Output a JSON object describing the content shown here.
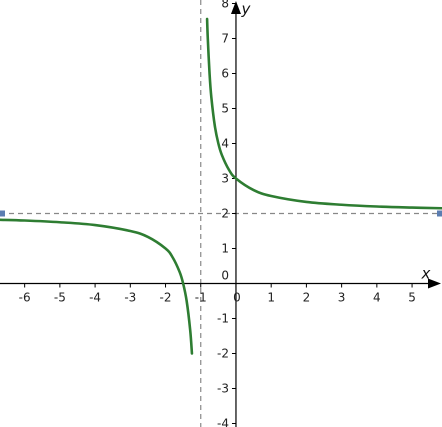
{
  "chart_data": {
    "type": "line",
    "title": "",
    "xlabel": "x",
    "ylabel": "y",
    "xlim": [
      -6.7,
      5.85
    ],
    "ylim": [
      -4.1,
      8.1
    ],
    "x_ticks": [
      "-6",
      "-5",
      "-4",
      "-3",
      "-2",
      "-1",
      "0",
      "1",
      "2",
      "3",
      "4",
      "5"
    ],
    "y_ticks": [
      "-4",
      "-3",
      "-2",
      "-1",
      "0",
      "1",
      "2",
      "3",
      "4",
      "5",
      "6",
      "7",
      "8"
    ],
    "grid": false,
    "series": [
      {
        "name": "",
        "color": "#2e7d32",
        "branches": [
          {
            "x": [
              -6.7,
              -6.0,
              -5.0,
              -4.0,
              -3.0,
              -2.5,
              -2.0,
              -1.8,
              -1.6,
              -1.5,
              -1.4,
              -1.3,
              -1.25
            ],
            "y": [
              1.82,
              1.8,
              1.75,
              1.67,
              1.5,
              1.33,
              1.0,
              0.75,
              0.33,
              0.0,
              -0.5,
              -1.33,
              -2.0
            ]
          },
          {
            "x": [
              -0.82,
              -0.8,
              -0.75,
              -0.7,
              -0.6,
              -0.5,
              -0.4,
              -0.2,
              0.0,
              0.5,
              1.0,
              2.0,
              3.0,
              4.0,
              5.0,
              5.85
            ],
            "y": [
              7.56,
              7.0,
              6.0,
              5.33,
              4.5,
              4.0,
              3.67,
              3.25,
              3.0,
              2.67,
              2.5,
              2.33,
              2.25,
              2.2,
              2.17,
              2.15
            ]
          }
        ]
      }
    ],
    "asymptotes": [
      {
        "orientation": "vertical",
        "value": -1,
        "color": "#888888",
        "dash": true
      },
      {
        "orientation": "horizontal",
        "value": 2,
        "color": "#888888",
        "dash": true
      }
    ],
    "colors": {
      "axis": "#000000",
      "curve": "#2e7d32",
      "asymptote": "#888888",
      "handle": "#5b7db1"
    }
  }
}
